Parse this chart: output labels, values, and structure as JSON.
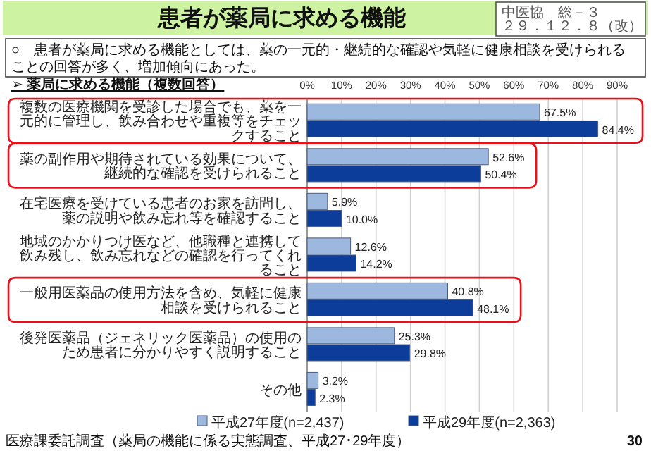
{
  "chart_data": {
    "type": "bar",
    "orientation": "horizontal",
    "title": "患者が薬局に求める機能",
    "subtitle": "○　患者が薬局に求める機能としては、薬の一元的・継続的な確認や気軽に健康相談を受けられることの回答が多く、増加傾向にあった。",
    "categories": [
      "複数の医療機関を受診した場合でも、薬を一元的に管理し、飲み合わせや重複等をチェックすること",
      "薬の副作用や期待されている効果について、継続的な確認を受けられること",
      "在宅医療を受けている患者のお家を訪問し、薬の説明や飲み忘れ等を確認すること",
      "地域のかかりつけ医など、他職種と連携して飲み残し、飲み忘れなどの確認を行ってくれること",
      "一般用医薬品の使用方法を含め、気軽に健康相談を受けられること",
      "後発医薬品（ジェネリック医薬品）の使用のため患者に分かりやすく説明すること",
      "その他"
    ],
    "series": [
      {
        "name": "平成27年度(n=2,437)",
        "color": "#9db8de",
        "values": [
          67.5,
          52.6,
          5.9,
          12.6,
          40.8,
          25.3,
          3.2
        ],
        "value_labels": [
          "67.5%",
          "52.6%",
          "5.9%",
          "12.6%",
          "40.8%",
          "25.3%",
          "3.2%"
        ]
      },
      {
        "name": "平成29年度(n=2,363)",
        "color": "#0d3d9b",
        "values": [
          84.4,
          50.4,
          10.0,
          14.2,
          48.1,
          29.8,
          2.3
        ],
        "value_labels": [
          "84.4%",
          "50.4%",
          "10.0%",
          "14.2%",
          "48.1%",
          "29.8%",
          "2.3%"
        ]
      }
    ],
    "xlim": [
      0,
      90
    ],
    "xticks": [
      {
        "value": 0,
        "label": "0%"
      },
      {
        "value": 10,
        "label": "10%"
      },
      {
        "value": 20,
        "label": "20%"
      },
      {
        "value": 30,
        "label": "30%"
      },
      {
        "value": 40,
        "label": "40%"
      },
      {
        "value": 50,
        "label": "50%"
      },
      {
        "value": 60,
        "label": "60%"
      },
      {
        "value": 70,
        "label": "70%"
      },
      {
        "value": 80,
        "label": "80%"
      },
      {
        "value": 90,
        "label": "90%"
      }
    ],
    "grid": "x",
    "legend": "bottom",
    "annotations": [
      "➢ 薬局に求める機能（複数回答）",
      "中医協　総－３",
      "２９．１２．８（改）",
      "医療課委託調査（薬局の機能に係る実態調査、平成27･29年度）",
      "30"
    ]
  }
}
